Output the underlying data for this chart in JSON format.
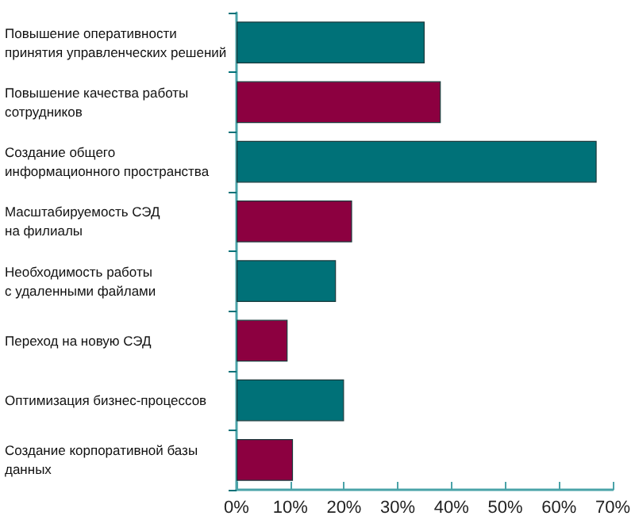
{
  "chart_data": {
    "type": "bar",
    "orientation": "horizontal",
    "categories": [
      "Повышение оперативности\nпринятия управленческих решений",
      "Повышение качества работы\nсотрудников",
      "Создание общего\nинформационного пространства",
      "Масштабируемость СЭД\nна филиалы",
      "Необходимость работы\nс удаленными файлами",
      "Переход на новую СЭД",
      "Оптимизация бизнес-процессов",
      "Создание корпоративной базы\nданных"
    ],
    "values": [
      35,
      38,
      67,
      21.5,
      18.5,
      9.5,
      20,
      10.5
    ],
    "colors": [
      "#007178",
      "#8c0040",
      "#007178",
      "#8c0040",
      "#007178",
      "#8c0040",
      "#007178",
      "#8c0040"
    ],
    "xlim": [
      0,
      70
    ],
    "xticks": [
      {
        "value": 0,
        "label": "0%"
      },
      {
        "value": 10,
        "label": "10%"
      },
      {
        "value": 20,
        "label": "20%"
      },
      {
        "value": 30,
        "label": "30%"
      },
      {
        "value": 40,
        "label": "40%"
      },
      {
        "value": 50,
        "label": "50%"
      },
      {
        "value": 60,
        "label": "60%"
      },
      {
        "value": 70,
        "label": "70%"
      }
    ],
    "grid": false
  }
}
